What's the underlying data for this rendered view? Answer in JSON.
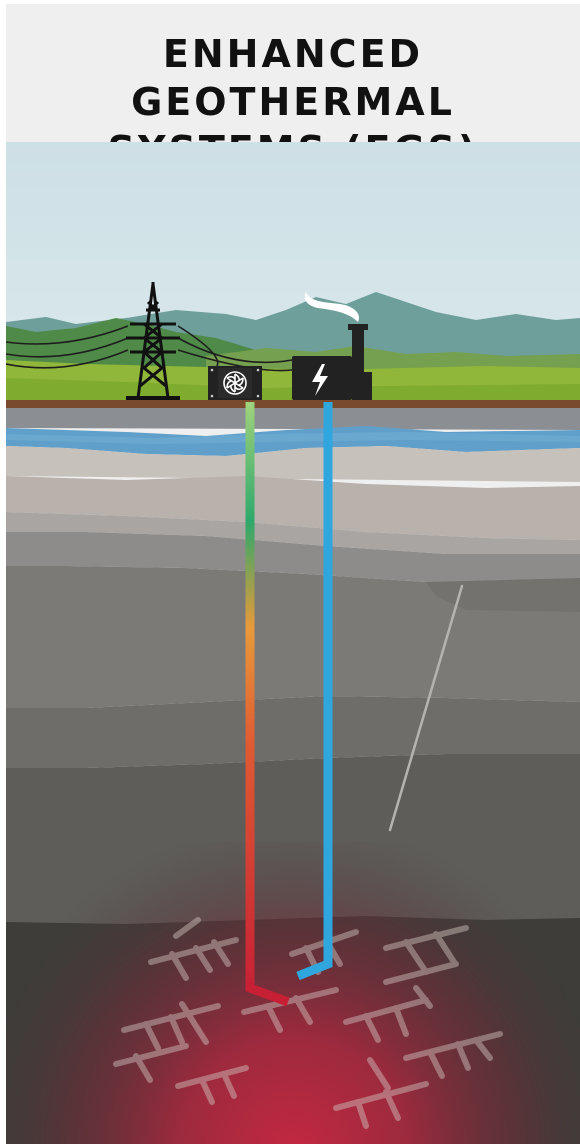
{
  "header": {
    "title_line_1": "ENHANCED GEOTHERMAL",
    "title_line_2": "SYSTEMS (EGS)"
  },
  "icons": {
    "transmission_tower": "transmission-tower-icon",
    "heat_exchanger": "fan-icon",
    "power_plant": "lightning-bolt-icon",
    "smokestack": "smokestack-icon"
  },
  "colors": {
    "sky": "#cfe0e6",
    "hot_well": "#c72034",
    "cold_well": "#2fa6dd",
    "aquifer": "#5b9ec9",
    "heat_glow": "#c42841",
    "building": "#222222"
  }
}
